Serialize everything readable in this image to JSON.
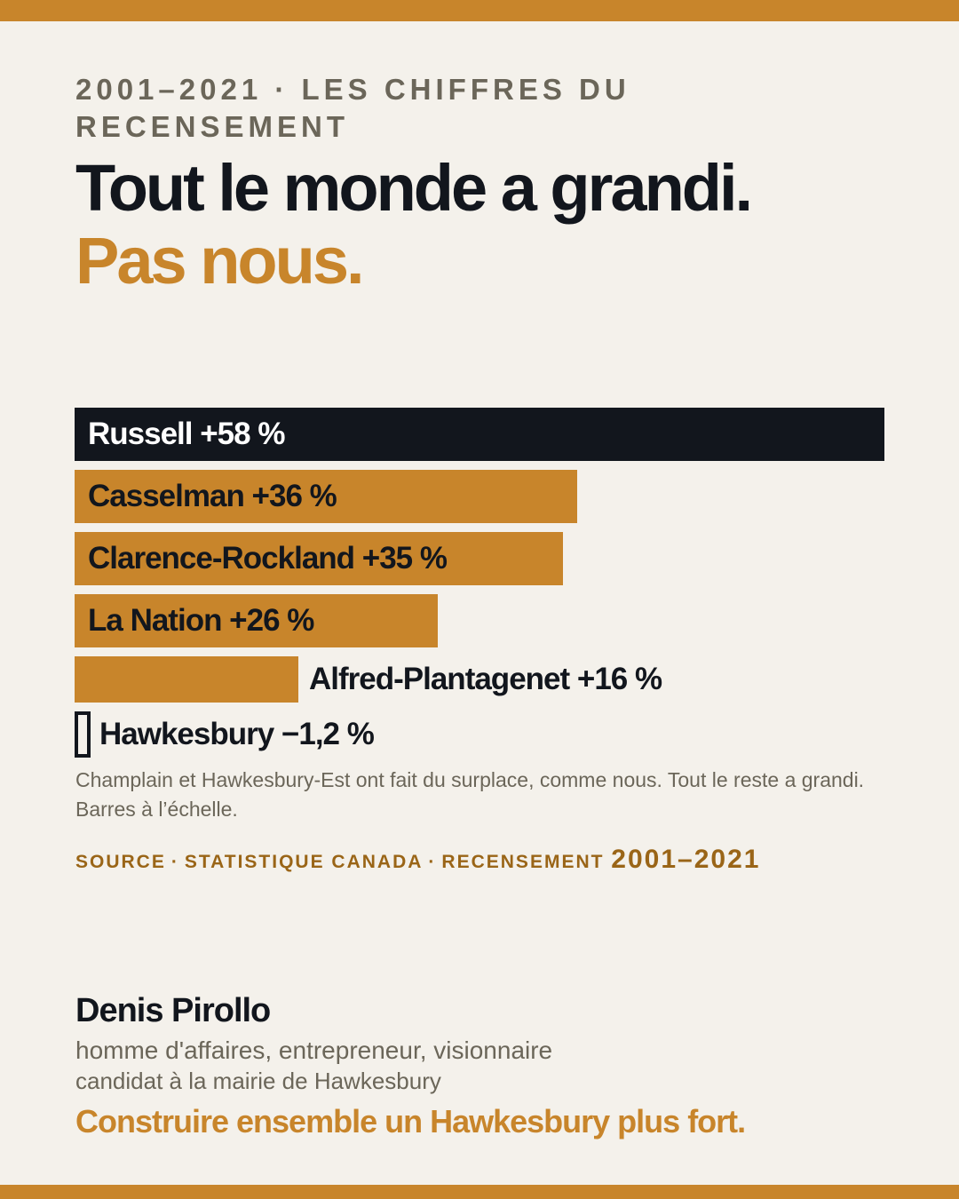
{
  "eyebrow": "2001–2021 · LES CHIFFRES DU RECENSEMENT",
  "headline": "Tout le monde a grandi.",
  "headline_accent": "Pas nous.",
  "note": "Champlain et Hawkesbury-Est ont fait du surplace, comme nous. Tout le reste a grandi. Barres à l’échelle.",
  "source": {
    "part1": "SOURCE",
    "part2": "STATISTIQUE CANADA",
    "part3": "RECENSEMENT",
    "years": "2001–2021"
  },
  "signature": {
    "name": "Denis Pirollo",
    "line1": "homme d'affaires, entrepreneur, visionnaire",
    "line2": "candidat à la mairie de Hawkesbury",
    "slogan": "Construire ensemble un Hawkesbury plus fort."
  },
  "colors": {
    "accent": "#c8852b",
    "highlight": "#12161d",
    "background": "#f4f1eb"
  },
  "chart_data": {
    "type": "bar",
    "orientation": "horizontal",
    "categories": [
      "Russell",
      "Casselman",
      "Clarence-Rockland",
      "La Nation",
      "Alfred-Plantagenet",
      "Hawkesbury"
    ],
    "values": [
      58,
      36,
      35,
      26,
      16,
      -1.2
    ],
    "labels": [
      "Russell +58 %",
      "Casselman +36 %",
      "Clarence-Rockland +35 %",
      "La Nation +26 %",
      "Alfred-Plantagenet +16 %",
      "Hawkesbury −1,2 %"
    ],
    "highlight_category": "Russell",
    "xlim": [
      0,
      58
    ],
    "unit": "%"
  }
}
